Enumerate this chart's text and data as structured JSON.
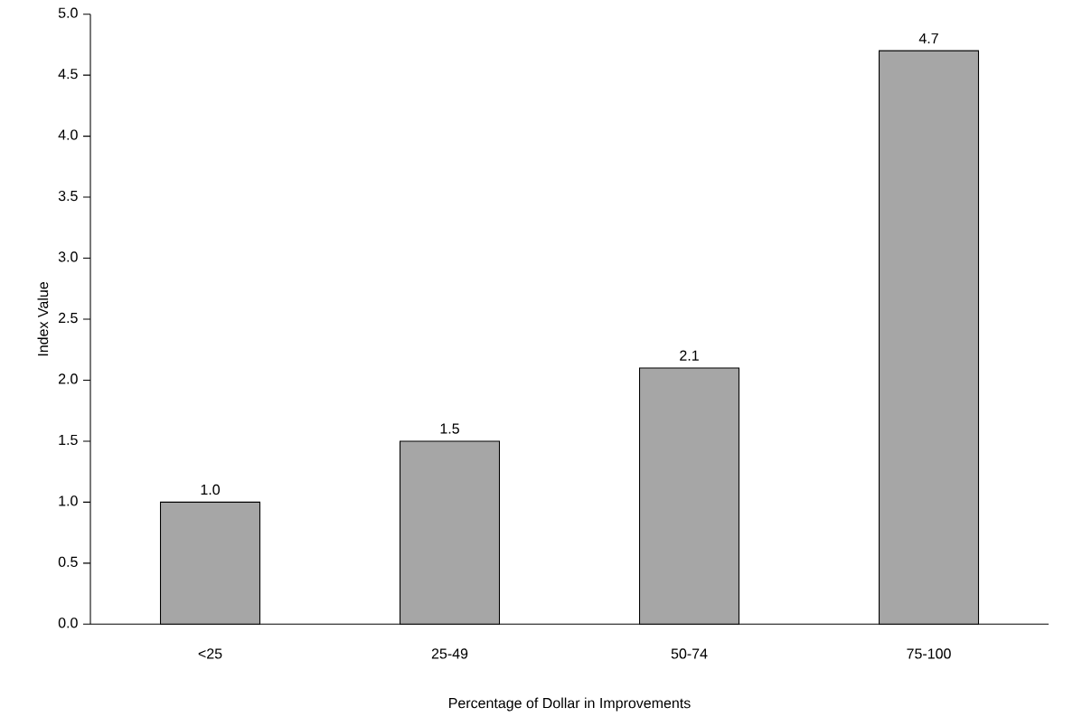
{
  "chart_data": {
    "type": "bar",
    "xlabel": "Percentage of Dollar in Improvements",
    "ylabel": "Index Value",
    "categories": [
      "<25",
      "25-49",
      "50-74",
      "75-100"
    ],
    "values": [
      1.0,
      1.5,
      2.1,
      4.7
    ],
    "color": "#a6a6a6",
    "value_labels": [
      "1.0",
      "1.5",
      "2.1",
      "4.7"
    ],
    "ylim": [
      0,
      5
    ],
    "yticks": [
      {
        "value": 0,
        "label": "0.0"
      },
      {
        "value": 0.5,
        "label": "0.5"
      },
      {
        "value": 1,
        "label": "1.0"
      },
      {
        "value": 1.5,
        "label": "1.5"
      },
      {
        "value": 2,
        "label": "2.0"
      },
      {
        "value": 2.5,
        "label": "2.5"
      },
      {
        "value": 3,
        "label": "3.0"
      },
      {
        "value": 3.5,
        "label": "3.5"
      },
      {
        "value": 4,
        "label": "4.0"
      },
      {
        "value": 4.5,
        "label": "4.5"
      },
      {
        "value": 5,
        "label": "5.0"
      }
    ],
    "grid": false
  }
}
